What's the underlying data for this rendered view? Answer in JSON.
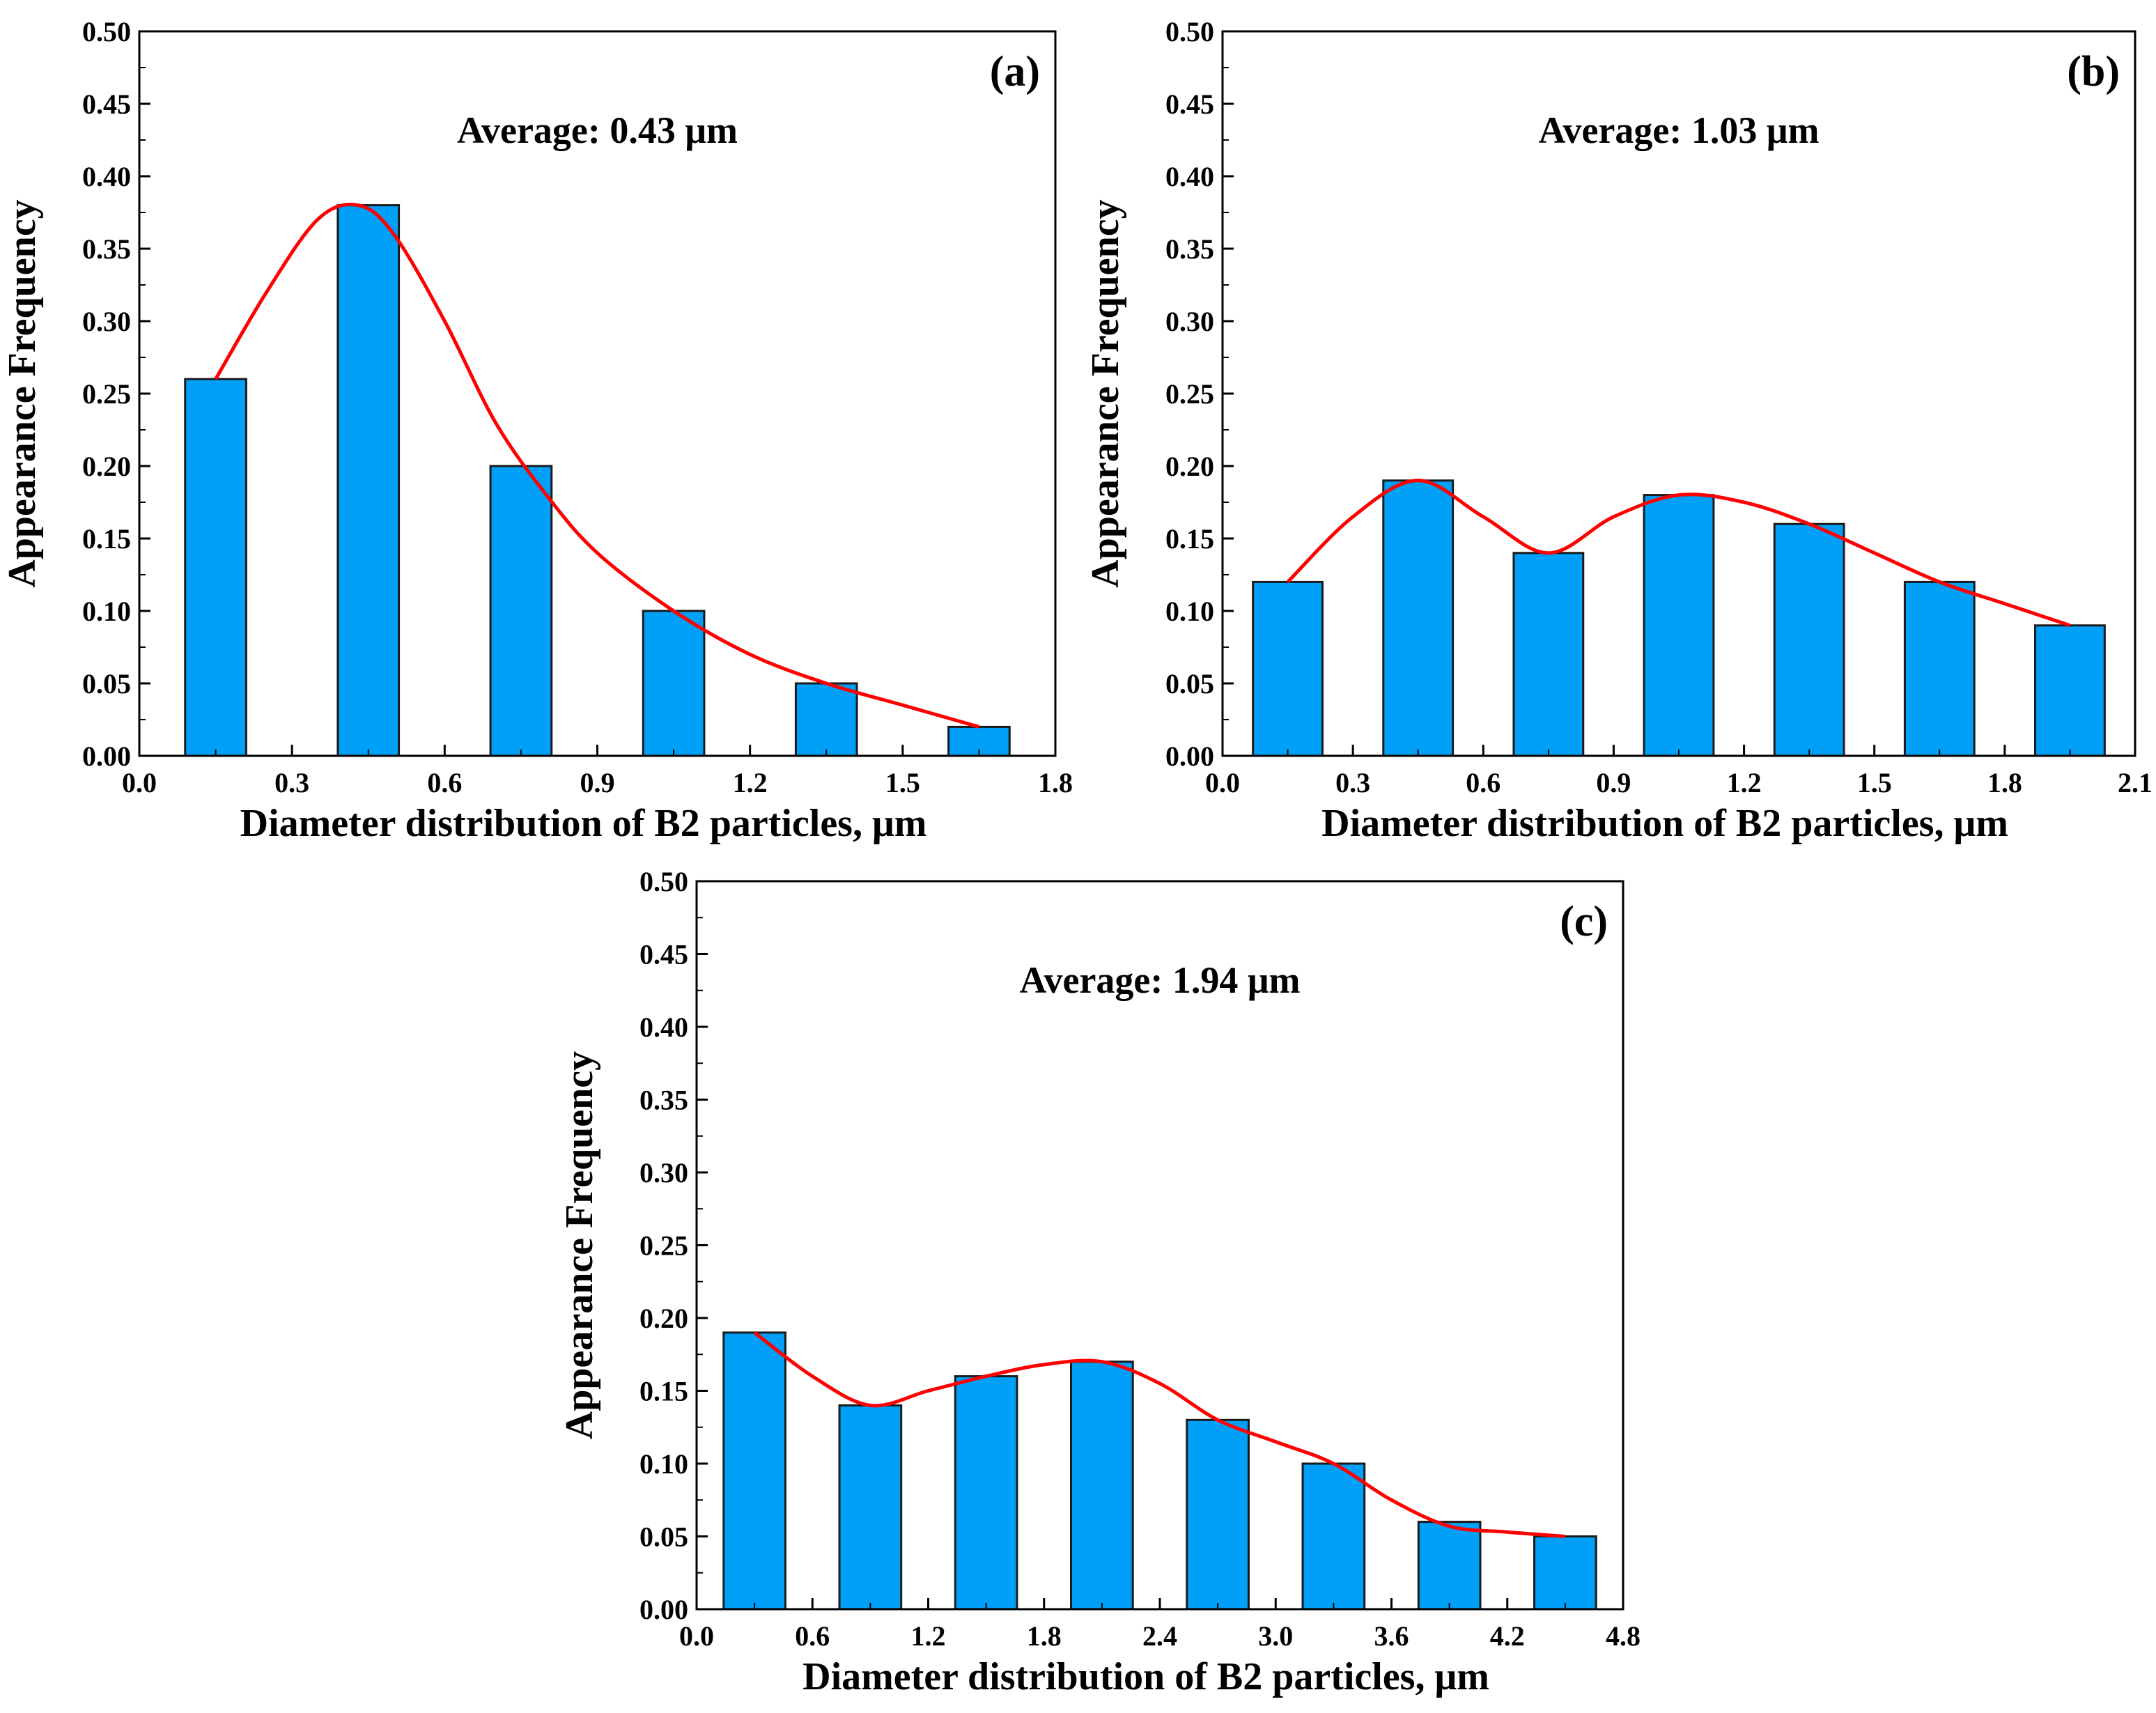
{
  "figure": {
    "avg_label_prefix": "Average: "
  },
  "colors": {
    "bar_fill": "#00A0F8",
    "bar_stroke": "#1a1a1a",
    "fit_line": "#FF0000",
    "axis": "#000000"
  },
  "chart_data": [
    {
      "type": "bar",
      "panel_label": "(a)",
      "average_text": "Average: 0.43 μm",
      "xlabel": "Diameter distribution of B2 particles, μm",
      "ylabel": "Appearance Frequency",
      "xlim": [
        0.0,
        1.8
      ],
      "ylim": [
        0.0,
        0.5
      ],
      "x_ticks": [
        "0.0",
        "0.3",
        "0.6",
        "0.9",
        "1.2",
        "1.5",
        "1.8"
      ],
      "y_ticks": [
        "0.00",
        "0.05",
        "0.10",
        "0.15",
        "0.20",
        "0.25",
        "0.30",
        "0.35",
        "0.40",
        "0.45",
        "0.50"
      ],
      "bar_width": 0.12,
      "bars": [
        {
          "x": 0.15,
          "value": 0.26
        },
        {
          "x": 0.45,
          "value": 0.38
        },
        {
          "x": 0.75,
          "value": 0.2
        },
        {
          "x": 1.05,
          "value": 0.1
        },
        {
          "x": 1.35,
          "value": 0.05
        },
        {
          "x": 1.65,
          "value": 0.02
        }
      ],
      "fit_curve": [
        [
          0.15,
          0.26
        ],
        [
          0.25,
          0.32
        ],
        [
          0.35,
          0.37
        ],
        [
          0.43,
          0.38
        ],
        [
          0.5,
          0.36
        ],
        [
          0.6,
          0.3
        ],
        [
          0.7,
          0.23
        ],
        [
          0.8,
          0.18
        ],
        [
          0.9,
          0.14
        ],
        [
          1.05,
          0.1
        ],
        [
          1.2,
          0.07
        ],
        [
          1.35,
          0.05
        ],
        [
          1.5,
          0.035
        ],
        [
          1.65,
          0.02
        ]
      ]
    },
    {
      "type": "bar",
      "panel_label": "(b)",
      "average_text": "Average: 1.03 μm",
      "xlabel": "Diameter distribution of B2 particles, μm",
      "ylabel": "Appearance Frequency",
      "xlim": [
        0.0,
        2.1
      ],
      "ylim": [
        0.0,
        0.5
      ],
      "x_ticks": [
        "0.0",
        "0.3",
        "0.6",
        "0.9",
        "1.2",
        "1.5",
        "1.8",
        "2.1"
      ],
      "y_ticks": [
        "0.00",
        "0.05",
        "0.10",
        "0.15",
        "0.20",
        "0.25",
        "0.30",
        "0.35",
        "0.40",
        "0.45",
        "0.50"
      ],
      "bar_width": 0.16,
      "bars": [
        {
          "x": 0.15,
          "value": 0.12
        },
        {
          "x": 0.45,
          "value": 0.19
        },
        {
          "x": 0.75,
          "value": 0.14
        },
        {
          "x": 1.05,
          "value": 0.18
        },
        {
          "x": 1.35,
          "value": 0.16
        },
        {
          "x": 1.65,
          "value": 0.12
        },
        {
          "x": 1.95,
          "value": 0.09
        }
      ],
      "fit_curve": [
        [
          0.15,
          0.12
        ],
        [
          0.3,
          0.165
        ],
        [
          0.45,
          0.19
        ],
        [
          0.6,
          0.165
        ],
        [
          0.75,
          0.14
        ],
        [
          0.9,
          0.165
        ],
        [
          1.05,
          0.18
        ],
        [
          1.2,
          0.175
        ],
        [
          1.35,
          0.16
        ],
        [
          1.5,
          0.14
        ],
        [
          1.65,
          0.12
        ],
        [
          1.8,
          0.105
        ],
        [
          1.95,
          0.09
        ]
      ]
    },
    {
      "type": "bar",
      "panel_label": "(c)",
      "average_text": "Average: 1.94 μm",
      "xlabel": "Diameter distribution of B2 particles, μm",
      "ylabel": "Appearance Frequency",
      "xlim": [
        0.0,
        4.8
      ],
      "ylim": [
        0.0,
        0.5
      ],
      "x_ticks": [
        "0.0",
        "0.6",
        "1.2",
        "1.8",
        "2.4",
        "3.0",
        "3.6",
        "4.2",
        "4.8"
      ],
      "y_ticks": [
        "0.00",
        "0.05",
        "0.10",
        "0.15",
        "0.20",
        "0.25",
        "0.30",
        "0.35",
        "0.40",
        "0.45",
        "0.50"
      ],
      "bar_width": 0.32,
      "bars": [
        {
          "x": 0.3,
          "value": 0.19
        },
        {
          "x": 0.9,
          "value": 0.14
        },
        {
          "x": 1.5,
          "value": 0.16
        },
        {
          "x": 2.1,
          "value": 0.17
        },
        {
          "x": 2.7,
          "value": 0.13
        },
        {
          "x": 3.3,
          "value": 0.1
        },
        {
          "x": 3.9,
          "value": 0.06
        },
        {
          "x": 4.5,
          "value": 0.05
        }
      ],
      "fit_curve": [
        [
          0.3,
          0.19
        ],
        [
          0.6,
          0.16
        ],
        [
          0.9,
          0.14
        ],
        [
          1.2,
          0.15
        ],
        [
          1.5,
          0.16
        ],
        [
          1.8,
          0.168
        ],
        [
          2.1,
          0.17
        ],
        [
          2.4,
          0.155
        ],
        [
          2.7,
          0.13
        ],
        [
          3.0,
          0.115
        ],
        [
          3.3,
          0.1
        ],
        [
          3.6,
          0.075
        ],
        [
          3.9,
          0.057
        ],
        [
          4.2,
          0.053
        ],
        [
          4.5,
          0.05
        ]
      ]
    }
  ]
}
